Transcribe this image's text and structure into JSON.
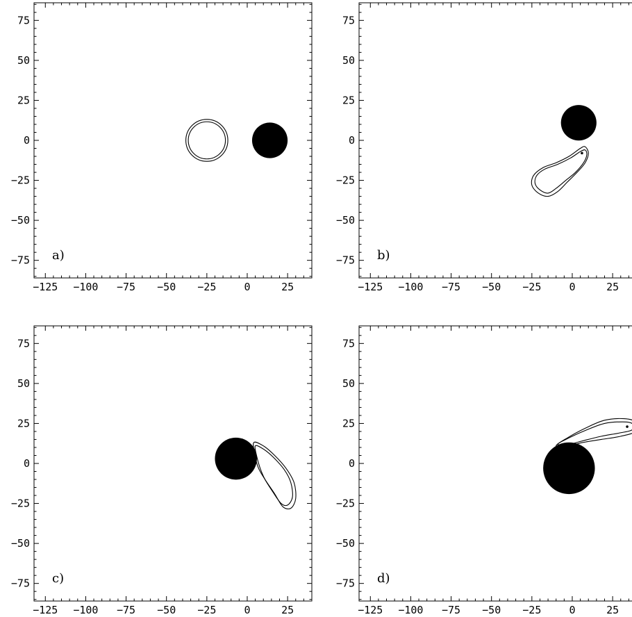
{
  "chart_data": [
    {
      "type": "contour",
      "panel_label": "a)",
      "xticks": [
        -125,
        -100,
        -75,
        -50,
        -25,
        0,
        25
      ],
      "yticks": [
        75,
        50,
        25,
        0,
        -25,
        -50,
        -75
      ],
      "xlim": [
        -132,
        40
      ],
      "ylim": [
        -86,
        86
      ],
      "filled_disk": {
        "cx": 14,
        "cy": 0,
        "r": 11
      },
      "contours": [
        {
          "shape": "ring",
          "cx": -25,
          "cy": 0,
          "r": 13
        },
        {
          "shape": "ring",
          "cx": -25,
          "cy": 0,
          "r": 11.5
        }
      ]
    },
    {
      "type": "contour",
      "panel_label": "b)",
      "xticks": [
        -125,
        -100,
        -75,
        -50,
        -25,
        0,
        25
      ],
      "yticks": [
        75,
        50,
        25,
        0,
        -25,
        -50,
        -75
      ],
      "xlim": [
        -132,
        40
      ],
      "ylim": [
        -86,
        86
      ],
      "filled_disk": {
        "cx": 4,
        "cy": 11,
        "r": 11
      },
      "point": {
        "x": 6,
        "y": -8
      },
      "contours": [
        {
          "shape": "loop",
          "points": [
            [
              8,
              -4
            ],
            [
              10,
              -8
            ],
            [
              8,
              -14
            ],
            [
              3,
              -20
            ],
            [
              -3,
              -26
            ],
            [
              -9,
              -32
            ],
            [
              -15,
              -35
            ],
            [
              -21,
              -33
            ],
            [
              -25,
              -28
            ],
            [
              -24,
              -22
            ],
            [
              -18,
              -17
            ],
            [
              -10,
              -14
            ],
            [
              -2,
              -10
            ],
            [
              5,
              -5
            ],
            [
              8,
              -4
            ]
          ]
        },
        {
          "shape": "loop",
          "points": [
            [
              8,
              -6
            ],
            [
              9,
              -9
            ],
            [
              7,
              -14
            ],
            [
              2,
              -20
            ],
            [
              -4,
              -25
            ],
            [
              -10,
              -30
            ],
            [
              -15,
              -33
            ],
            [
              -20,
              -31
            ],
            [
              -23,
              -27
            ],
            [
              -22,
              -22
            ],
            [
              -17,
              -18
            ],
            [
              -9,
              -15
            ],
            [
              -1,
              -11
            ],
            [
              5,
              -7
            ],
            [
              8,
              -6
            ]
          ]
        }
      ]
    },
    {
      "type": "contour",
      "panel_label": "c)",
      "xticks": [
        -125,
        -100,
        -75,
        -50,
        -25,
        0,
        25
      ],
      "yticks": [
        75,
        50,
        25,
        0,
        -25,
        -50,
        -75
      ],
      "xlim": [
        -132,
        40
      ],
      "ylim": [
        -86,
        86
      ],
      "filled_disk": {
        "cx": -7,
        "cy": 3,
        "r": 13
      },
      "contours": [
        {
          "shape": "loop",
          "points": [
            [
              4,
              13
            ],
            [
              10,
              11
            ],
            [
              17,
              5
            ],
            [
              24,
              -3
            ],
            [
              29,
              -12
            ],
            [
              30,
              -22
            ],
            [
              27,
              -28
            ],
            [
              22,
              -27
            ],
            [
              17,
              -19
            ],
            [
              11,
              -10
            ],
            [
              7,
              -3
            ],
            [
              5,
              4
            ],
            [
              4,
              13
            ]
          ]
        },
        {
          "shape": "loop",
          "points": [
            [
              5,
              11
            ],
            [
              10,
              9
            ],
            [
              16,
              4
            ],
            [
              23,
              -4
            ],
            [
              27,
              -12
            ],
            [
              28,
              -21
            ],
            [
              25,
              -26
            ],
            [
              21,
              -25
            ],
            [
              16,
              -18
            ],
            [
              11,
              -10
            ],
            [
              8,
              -3
            ],
            [
              6,
              4
            ],
            [
              5,
              11
            ]
          ]
        }
      ]
    },
    {
      "type": "contour",
      "panel_label": "d)",
      "xticks": [
        -125,
        -100,
        -75,
        -50,
        -25,
        0,
        25
      ],
      "yticks": [
        75,
        50,
        25,
        0,
        -25,
        -50,
        -75
      ],
      "xlim": [
        -132,
        40
      ],
      "ylim": [
        -86,
        86
      ],
      "filled_disk": {
        "cx": -2,
        "cy": -3,
        "r": 16
      },
      "point": {
        "x": 34,
        "y": 23
      },
      "contours": [
        {
          "shape": "loop",
          "points": [
            [
              -10,
              11
            ],
            [
              -3,
              16
            ],
            [
              8,
              22
            ],
            [
              20,
              27
            ],
            [
              32,
              28
            ],
            [
              39,
              26
            ],
            [
              39,
              20
            ],
            [
              30,
              17
            ],
            [
              18,
              15
            ],
            [
              6,
              13
            ],
            [
              -2,
              11
            ],
            [
              -10,
              11
            ]
          ]
        },
        {
          "shape": "loop",
          "points": [
            [
              -9,
              12
            ],
            [
              -2,
              16
            ],
            [
              9,
              21
            ],
            [
              20,
              25
            ],
            [
              31,
              26
            ],
            [
              37,
              25
            ],
            [
              37,
              21
            ],
            [
              29,
              19
            ],
            [
              18,
              17
            ],
            [
              6,
              14
            ],
            [
              -2,
              12
            ],
            [
              -9,
              12
            ]
          ]
        }
      ]
    }
  ]
}
